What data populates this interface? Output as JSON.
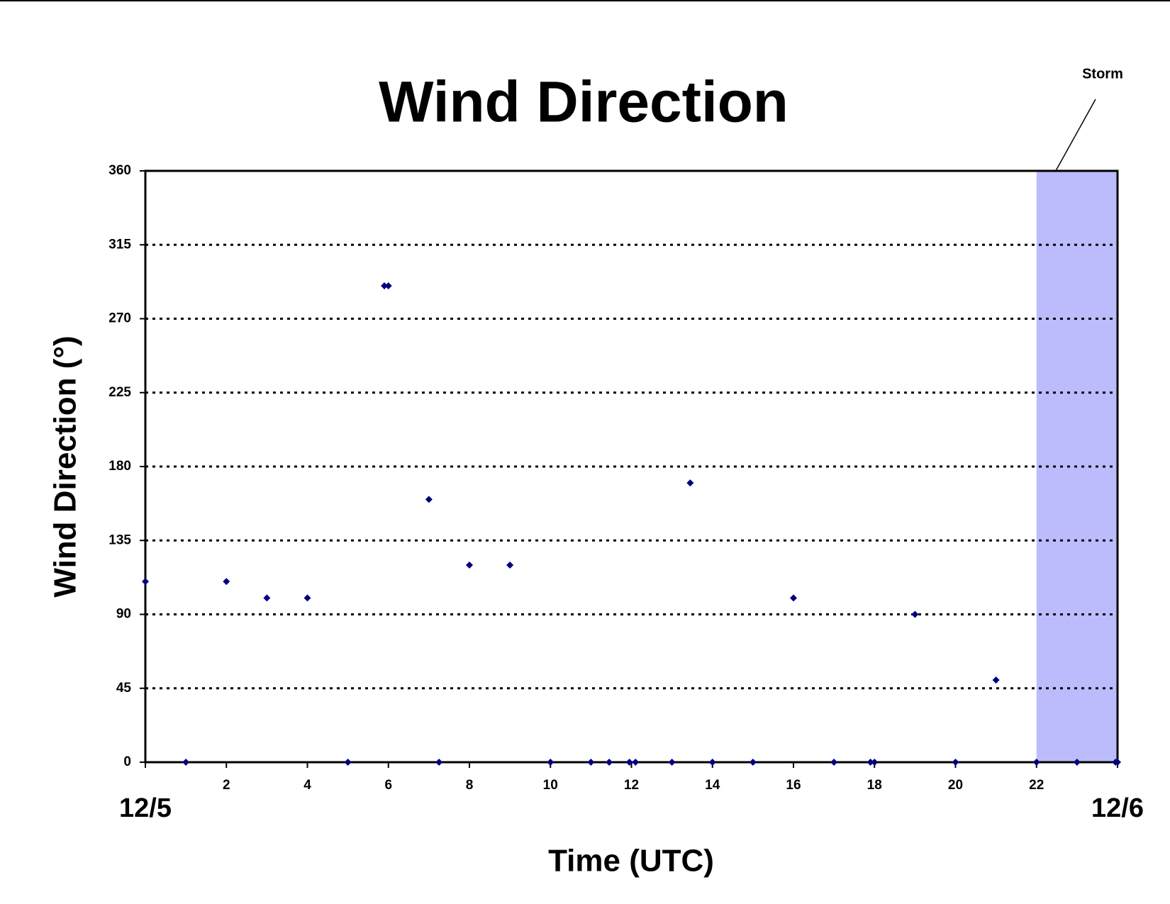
{
  "chart_data": {
    "type": "scatter",
    "title": "Wind Direction",
    "x_label": "Time (UTC)",
    "y_label": "Wind Direction (°)",
    "series": [
      {
        "name": "Wind Direction",
        "color": "#000080",
        "x": [
          0,
          1,
          2,
          3,
          4,
          5,
          5.9,
          6,
          7,
          7.25,
          8,
          9,
          10,
          11,
          11.45,
          11.95,
          12.1,
          13,
          13.45,
          14,
          15,
          16,
          17,
          17.9,
          18,
          19,
          20,
          21,
          22,
          23,
          23.95,
          24
        ],
        "values": [
          110,
          0,
          110,
          100,
          100,
          0,
          290,
          290,
          160,
          0,
          120,
          120,
          0,
          0,
          0,
          0,
          0,
          0,
          170,
          0,
          0,
          100,
          0,
          0,
          0,
          90,
          0,
          50,
          0,
          0,
          0,
          0
        ]
      }
    ],
    "xlim": [
      0,
      24
    ],
    "xticks": [
      {
        "value": 0,
        "label": "12/5"
      },
      2,
      4,
      6,
      8,
      10,
      12,
      14,
      16,
      18,
      20,
      22,
      {
        "value": 24,
        "label": "12/6"
      }
    ],
    "ylim": [
      0,
      360
    ],
    "yticks": [
      0,
      45,
      90,
      135,
      180,
      225,
      270,
      315,
      360
    ],
    "grid": true,
    "shaded_region": {
      "label": "Storm",
      "xlim": [
        22,
        24
      ],
      "color": "#bcbcfc"
    }
  }
}
